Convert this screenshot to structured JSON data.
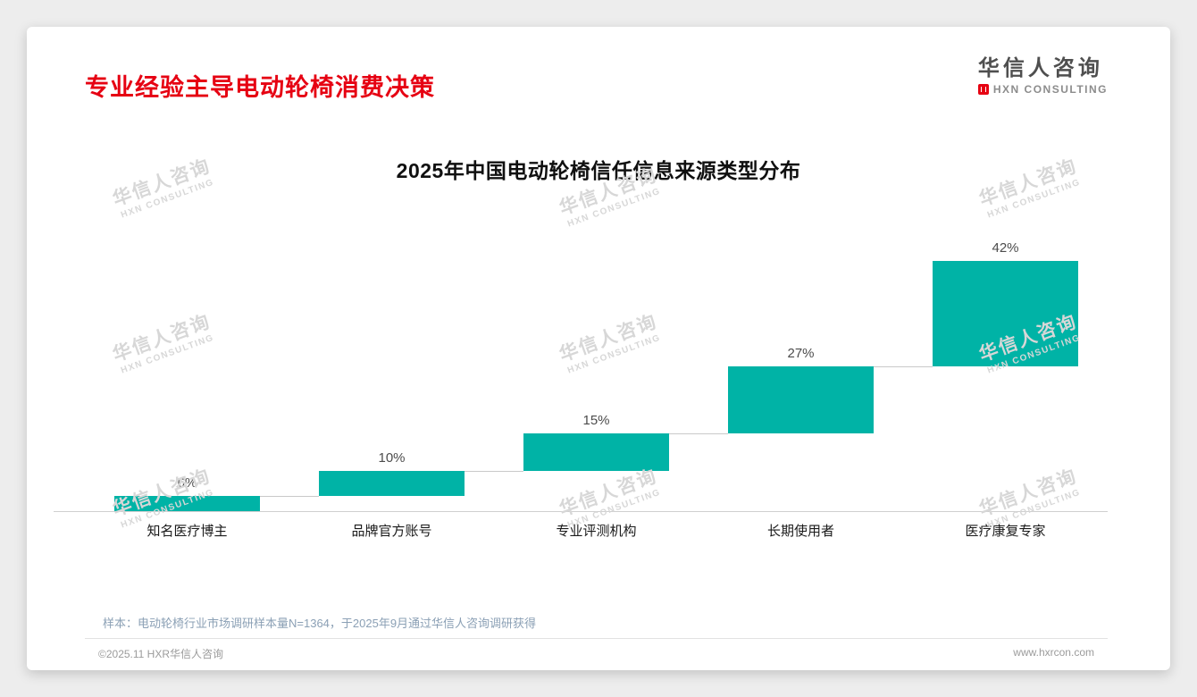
{
  "page": {
    "title": "专业经验主导电动轮椅消费决策",
    "accent_color": "#e60012",
    "logo": {
      "name": "华信人咨询",
      "sub": "HXN CONSULTING"
    },
    "watermark": {
      "line1": "华信人咨询",
      "line2": "HXN CONSULTING"
    },
    "footnote": "样本：电动轮椅行业市场调研样本量N=1364，于2025年9月通过华信人咨询调研获得",
    "footer": {
      "left": "©2025.11 HXR华信人咨询",
      "right": "www.hxrcon.com"
    }
  },
  "chart_data": {
    "type": "bar",
    "subtype": "waterfall",
    "title": "2025年中国电动轮椅信任信息来源类型分布",
    "categories": [
      "知名医疗博主",
      "品牌官方账号",
      "专业评测机构",
      "长期使用者",
      "医疗康复专家"
    ],
    "values": [
      6,
      10,
      15,
      27,
      42
    ],
    "cumulative_values": [
      6,
      16,
      31,
      58,
      100
    ],
    "value_labels": [
      "6%",
      "10%",
      "15%",
      "27%",
      "42%"
    ],
    "unit": "%",
    "ylim": [
      0,
      100
    ],
    "bar_color": "#00b3a6",
    "grid": false,
    "legend": false
  }
}
